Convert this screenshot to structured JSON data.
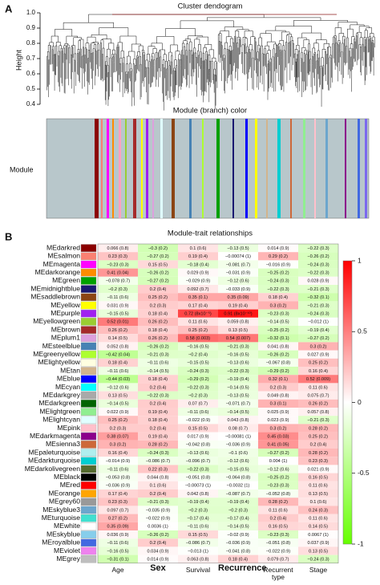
{
  "chart_data": [
    {
      "type": "dendrogram",
      "panel": "A",
      "title": "Cluster dendogram",
      "ylabel": "Height",
      "ylim": [
        0.4,
        1.0
      ],
      "yticks": [
        0.4,
        0.5,
        0.6,
        0.7,
        0.8,
        0.9,
        {
          "value": 1.0,
          "label": "1.0"
        }
      ],
      "subtitle": "Module (branch) color",
      "module_label": "Module"
    },
    {
      "type": "heatmap",
      "panel": "B",
      "title": "Module-trait relationships",
      "rows": [
        "MEdarkred",
        "MEsalmon",
        "MEmagenta",
        "MEdarkorange",
        "MEgreen",
        "MEmidnightblue",
        "MEsaddlebrown",
        "MEyellow",
        "MEpurple",
        "MEyellowgreen",
        "MEbrown",
        "MEplum1",
        "MEsteelblue",
        "MEgreenyellow",
        "MElightyellow",
        "MEtan",
        "MEblue",
        "MEcyan",
        "MEdarkgrey",
        "MEdarkgreen",
        "MElightgreen",
        "MElightcyan",
        "MEpink",
        "MEdarkmagenta",
        "MEsienna3",
        "MEpaleturquoise",
        "MEdarkturquoise",
        "MEdarkolivegreen",
        "MEblack",
        "MEred",
        "MEorange",
        "MEgrey60",
        "MEskyblue3",
        "MEturquoise",
        "MEwhite",
        "MEskyblue",
        "MEroyalblue",
        "MEviolet",
        "MEgrey"
      ],
      "row_colors": [
        "#8b0000",
        "#fa8072",
        "#ff00ff",
        "#ff8c00",
        "#00a000",
        "#191970",
        "#8b4513",
        "#ffff00",
        "#a020f0",
        "#9acd32",
        "#a52a2a",
        "#dda0dd",
        "#4682b4",
        "#adff2f",
        "#ffffe0",
        "#d2b48c",
        "#0000ff",
        "#00ffff",
        "#a9a9a9",
        "#006400",
        "#90ee90",
        "#e0ffff",
        "#ffc0cb",
        "#8b008b",
        "#cd6839",
        "#afeeee",
        "#00ced1",
        "#556b2f",
        "#000000",
        "#ff0000",
        "#ffa500",
        "#999999",
        "#6ca6cd",
        "#40e0d0",
        "#ffffff",
        "#87ceeb",
        "#4169e1",
        "#ee82ee",
        "#bebebe"
      ],
      "columns": [
        "Age",
        "Sex",
        "Survival",
        "Recurrence",
        "Recurrent type",
        "Stage"
      ],
      "values": [
        [
          0.066,
          -0.3,
          0.1,
          -0.13,
          0.014,
          -0.22
        ],
        [
          0.23,
          -0.27,
          0.19,
          -0.00074,
          0.29,
          -0.26
        ],
        [
          -0.23,
          0.15,
          -0.18,
          -0.081,
          -0.016,
          -0.24
        ],
        [
          0.41,
          -0.26,
          0.029,
          -0.031,
          -0.25,
          -0.22
        ],
        [
          -0.078,
          -0.27,
          -0.029,
          -0.12,
          -0.24,
          0.028
        ],
        [
          -0.2,
          0.2,
          0.092,
          -0.033,
          -0.22,
          -0.21
        ],
        [
          -0.11,
          0.25,
          0.35,
          0.35,
          0.18,
          -0.32
        ],
        [
          0.031,
          0.2,
          0.17,
          0.19,
          0.3,
          -0.21
        ],
        [
          -0.15,
          0.18,
          0.72,
          0.91,
          -0.23,
          -0.24
        ],
        [
          0.52,
          0.26,
          0.11,
          0.059,
          -0.14,
          -0.012
        ],
        [
          0.26,
          0.18,
          0.25,
          0.13,
          -0.25,
          -0.19
        ],
        [
          0.14,
          0.26,
          0.58,
          0.54,
          -0.32,
          -0.27
        ],
        [
          0.052,
          -0.26,
          -0.16,
          -0.21,
          0.041,
          0.3
        ],
        [
          -0.42,
          -0.21,
          -0.2,
          -0.16,
          -0.26,
          0.027
        ],
        [
          0.18,
          -0.11,
          -0.15,
          -0.13,
          -0.067,
          0.25
        ],
        [
          -0.11,
          -0.14,
          -0.24,
          -0.22,
          -0.29,
          0.16
        ],
        [
          -0.44,
          0.18,
          -0.29,
          -0.19,
          0.32,
          0.52
        ],
        [
          -0.12,
          0.2,
          -0.22,
          -0.14,
          0.2,
          0.11
        ],
        [
          0.13,
          -0.22,
          -0.2,
          -0.13,
          0.049,
          0.075
        ],
        [
          -0.14,
          0.2,
          0.07,
          -0.071,
          0.3,
          0.26
        ],
        [
          0.022,
          0.19,
          -0.11,
          -0.14,
          0.025,
          0.057
        ],
        [
          0.25,
          0.18,
          -0.022,
          0.043,
          0.023,
          -0.21
        ],
        [
          0.2,
          0.2,
          0.15,
          0.08,
          0.3,
          0.28
        ],
        [
          0.38,
          0.19,
          0.017,
          -0.00081,
          0.45,
          0.25
        ],
        [
          0.3,
          0.28,
          -0.042,
          -0.036,
          0.41,
          0.2
        ],
        [
          0.16,
          -0.24,
          -0.13,
          -0.1,
          -0.27,
          0.28
        ],
        [
          -0.014,
          -0.086,
          -0.096,
          -0.12,
          0.004,
          0.23
        ],
        [
          -0.11,
          0.22,
          -0.22,
          -0.15,
          -0.12,
          0.021
        ],
        [
          -0.053,
          0.044,
          -0.051,
          -0.064,
          -0.25,
          0.16
        ],
        [
          -0.036,
          0.1,
          -0.00073,
          -0.0032,
          -0.23,
          0.11
        ],
        [
          0.17,
          0.2,
          0.042,
          -0.087,
          -0.052,
          0.13
        ],
        [
          0.23,
          -0.21,
          -0.19,
          -0.19,
          0.28,
          0.1
        ],
        [
          0.097,
          -0.035,
          -0.2,
          -0.2,
          0.11,
          0.24
        ],
        [
          0.27,
          -0.022,
          -0.17,
          -0.17,
          0.2,
          0.11
        ],
        [
          0.35,
          0.0036,
          -0.11,
          -0.14,
          0.16,
          0.14
        ],
        [
          0.036,
          -0.26,
          0.15,
          -0.02,
          -0.23,
          0.0067
        ],
        [
          -0.11,
          0.2,
          -0.086,
          -0.036,
          -0.051,
          0.037
        ],
        [
          -0.16,
          0.034,
          -0.013,
          -0.041,
          -0.022,
          0.13
        ],
        [
          -0.31,
          0.014,
          0.063,
          0.18,
          0.079,
          -0.24
        ]
      ],
      "value_labels": [
        [
          "0.066 (0.8)",
          "−0.3 (0.2)",
          "0.1 (0.6)",
          "−0.13 (0.5)",
          "0.014 (0.9)",
          "−0.22 (0.3)"
        ],
        [
          "0.23 (0.3)",
          "−0.27 (0.2)",
          "0.19 (0.4)",
          "−0.00074 (1)",
          "0.29 (0.2)",
          "−0.26 (0.2)"
        ],
        [
          "−0.23 (0.3)",
          "0.15 (0.5)",
          "−0.18 (0.4)",
          "−0.081 (0.7)",
          "−0.016 (0.9)",
          "−0.24 (0.3)"
        ],
        [
          "0.41 (0.04)",
          "−0.26 (0.2)",
          "0.029 (0.9)",
          "−0.031 (0.9)",
          "−0.25 (0.2)",
          "−0.22 (0.3)"
        ],
        [
          "−0.078 (0.7)",
          "−0.27 (0.2)",
          "−0.029 (0.9)",
          "−0.12 (0.6)",
          "−0.24 (0.3)",
          "0.028 (0.9)"
        ],
        [
          "−0.2 (0.3)",
          "0.2 (0.4)",
          "0.092 (0.7)",
          "−0.033 (0.9)",
          "−0.22 (0.3)",
          "−0.21 (0.3)"
        ],
        [
          "−0.11 (0.6)",
          "0.25 (0.2)",
          "0.35 (0.1)",
          "0.35 (0.09)",
          "0.18 (0.4)",
          "−0.32 (0.1)"
        ],
        [
          "0.031 (0.9)",
          "0.2 (0.3)",
          "0.17 (0.4)",
          "0.19 (0.4)",
          "0.3 (0.2)",
          "−0.21 (0.3)"
        ],
        [
          "−0.15 (0.5)",
          "0.18 (0.4)",
          "0.72 (8x10⁻⁵)",
          "0.91 (8x10⁻¹⁰)",
          "−0.23 (0.3)",
          "−0.24 (0.3)"
        ],
        [
          "0.52 (0.01)",
          "0.26 (0.2)",
          "0.11 (0.6)",
          "0.059 (0.8)",
          "−0.14 (0.5)",
          "−0.012 (1)"
        ],
        [
          "0.26 (0.2)",
          "0.18 (0.4)",
          "0.25 (0.2)",
          "0.13 (0.5)",
          "−0.25 (0.2)",
          "−0.19 (0.4)"
        ],
        [
          "0.14 (0.5)",
          "0.26 (0.2)",
          "0.58 (0.003)",
          "0.54 (0.007)",
          "−0.32 (0.1)",
          "−0.27 (0.2)"
        ],
        [
          "0.052 (0.8)",
          "−0.26 (0.2)",
          "−0.16 (0.5)",
          "−0.21 (0.3)",
          "0.041 (0.8)",
          "0.3 (0.2)"
        ],
        [
          "−0.42 (0.04)",
          "−0.21 (0.3)",
          "−0.2 (0.4)",
          "−0.16 (0.5)",
          "−0.26 (0.2)",
          "0.027 (0.9)"
        ],
        [
          "0.18 (0.4)",
          "−0.11 (0.6)",
          "−0.15 (0.5)",
          "−0.13 (0.6)",
          "−0.067 (0.8)",
          "0.25 (0.2)"
        ],
        [
          "−0.11 (0.6)",
          "−0.14 (0.5)",
          "−0.24 (0.3)",
          "−0.22 (0.3)",
          "−0.29 (0.2)",
          "0.16 (0.4)"
        ],
        [
          "−0.44 (0.03)",
          "0.18 (0.4)",
          "−0.29 (0.2)",
          "−0.19 (0.4)",
          "0.32 (0.1)",
          "0.52 (0.009)"
        ],
        [
          "−0.12 (0.6)",
          "0.2 (0.4)",
          "−0.22 (0.3)",
          "−0.14 (0.5)",
          "0.2 (0.3)",
          "0.11 (0.6)"
        ],
        [
          "0.13 (0.5)",
          "−0.22 (0.3)",
          "−0.2 (0.3)",
          "−0.13 (0.5)",
          "0.049 (0.8)",
          "0.075 (0.7)"
        ],
        [
          "−0.14 (0.5)",
          "0.2 (0.4)",
          "0.07 (0.7)",
          "−0.071 (0.7)",
          "0.3 (0.1)",
          "0.26 (0.2)"
        ],
        [
          "0.022 (0.9)",
          "0.19 (0.4)",
          "−0.11 (0.6)",
          "−0.14 (0.5)",
          "0.025 (0.9)",
          "0.057 (0.8)"
        ],
        [
          "0.25 (0.2)",
          "0.18 (0.4)",
          "−0.022 (0.9)",
          "0.043 (0.8)",
          "0.023 (0.9)",
          "−0.21 (0.3)"
        ],
        [
          "0.2 (0.3)",
          "0.2 (0.4)",
          "0.15 (0.5)",
          "0.08 (0.7)",
          "0.3 (0.2)",
          "0.28 (0.2)"
        ],
        [
          "0.38 (0.07)",
          "0.19 (0.4)",
          "0.017 (0.9)",
          "−0.00081 (1)",
          "0.45 (0.03)",
          "0.25 (0.2)"
        ],
        [
          "0.3 (0.2)",
          "0.28 (0.2)",
          "−0.042 (0.8)",
          "−0.036 (0.9)",
          "0.41 (0.05)",
          "0.2 (0.4)"
        ],
        [
          "0.16 (0.4)",
          "−0.24 (0.3)",
          "−0.13 (0.6)",
          "−0.1 (0.6)",
          "−0.27 (0.2)",
          "0.28 (0.2)"
        ],
        [
          "−0.014 (0.9)",
          "−0.086 (0.7)",
          "−0.096 (0.7)",
          "−0.12 (0.6)",
          "0.004 (1)",
          "0.23 (0.3)"
        ],
        [
          "−0.11 (0.6)",
          "0.22 (0.3)",
          "−0.22 (0.3)",
          "−0.15 (0.5)",
          "−0.12 (0.6)",
          "0.021 (0.9)"
        ],
        [
          "−0.053 (0.8)",
          "0.044 (0.8)",
          "−0.051 (0.8)",
          "−0.064 (0.8)",
          "−0.25 (0.2)",
          "0.16 (0.5)"
        ],
        [
          "−0.036 (0.9)",
          "0.1 (0.6)",
          "−0.00073 (1)",
          "−0.0032 (1)",
          "−0.23 (0.3)",
          "0.11 (0.6)"
        ],
        [
          "0.17 (0.4)",
          "0.2 (0.4)",
          "0.042 (0.8)",
          "−0.087 (0.7)",
          "−0.052 (0.8)",
          "0.13 (0.5)"
        ],
        [
          "0.23 (0.3)",
          "−0.21 (0.3)",
          "−0.19 (0.4)",
          "−0.19 (0.4)",
          "0.28 (0.2)",
          "0.1 (0.6)"
        ],
        [
          "0.097 (0.7)",
          "−0.035 (0.9)",
          "−0.2 (0.3)",
          "−0.2 (0.3)",
          "0.11 (0.6)",
          "0.24 (0.3)"
        ],
        [
          "0.27 (0.2)",
          "−0.022 (0.9)",
          "−0.17 (0.4)",
          "−0.17 (0.4)",
          "0.2 (0.4)",
          "0.11 (0.6)"
        ],
        [
          "0.35 (0.09)",
          "0.0036 (1)",
          "−0.11 (0.6)",
          "−0.14 (0.5)",
          "0.16 (0.5)",
          "0.14 (0.5)"
        ],
        [
          "0.036 (0.9)",
          "−0.26 (0.2)",
          "0.15 (0.5)",
          "−0.02 (0.9)",
          "−0.23 (0.3)",
          "0.0067 (1)"
        ],
        [
          "−0.11 (0.6)",
          "0.2 (0.4)",
          "−0.086 (0.7)",
          "−0.036 (0.9)",
          "−0.051 (0.8)",
          "0.037 (0.9)"
        ],
        [
          "−0.16 (0.5)",
          "0.034 (0.9)",
          "−0.013 (1)",
          "−0.041 (0.8)",
          "−0.022 (0.9)",
          "0.13 (0.5)"
        ],
        [
          "−0.31 (0.1)",
          "0.014 (0.9)",
          "0.063 (0.8)",
          "0.18 (0.4)",
          "0.079 (0.7)",
          "−0.24 (0.3)"
        ]
      ],
      "colorscale": [
        "#66ff00",
        "#ffffff",
        "#ff0000"
      ],
      "colorbar_lim": [
        -1,
        1
      ],
      "colorbar_ticks": [
        -1,
        -0.5,
        0,
        0.5,
        1
      ]
    }
  ]
}
